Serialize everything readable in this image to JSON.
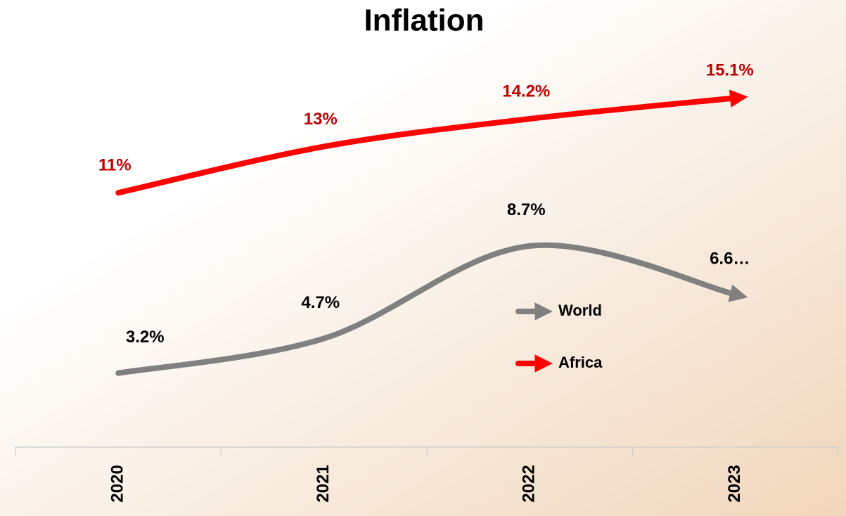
{
  "chart_data": {
    "type": "line",
    "title": "Inflation",
    "categories": [
      "2020",
      "2021",
      "2022",
      "2023"
    ],
    "series": [
      {
        "name": "World",
        "color": "#808080",
        "values": [
          3.2,
          4.7,
          8.7,
          6.6
        ],
        "value_labels": [
          "3.2%",
          "4.7%",
          "8.7%",
          "6.6…"
        ],
        "label_color": "#000000"
      },
      {
        "name": "Africa",
        "color": "#ff0000",
        "values": [
          11,
          13,
          14.2,
          15.1
        ],
        "value_labels": [
          "11%",
          "13%",
          "14.2%",
          "15.1%"
        ],
        "label_color": "#c00000"
      }
    ],
    "ylim": [
      0,
      18
    ],
    "grid": false
  }
}
